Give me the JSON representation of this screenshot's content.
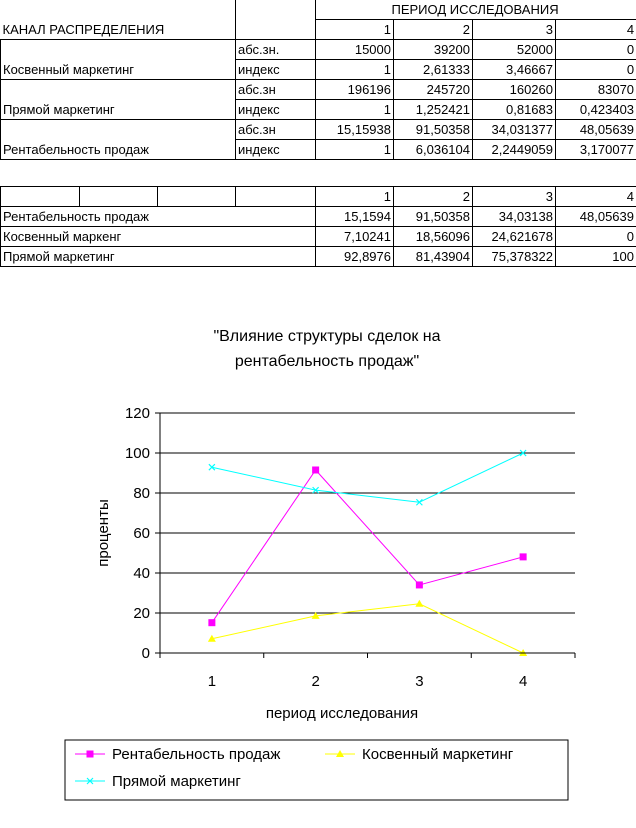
{
  "table1": {
    "channel_header": "КАНАЛ РАСПРЕДЕЛЕНИЯ",
    "period_header": "ПЕРИОД ИССЛЕДОВАНИЯ",
    "periods": [
      "1",
      "2",
      "3",
      "4"
    ],
    "groups": [
      {
        "name": "Косвенный маркетинг",
        "rows": [
          {
            "type": "абс.зн.",
            "values": [
              "15000",
              "39200",
              "52000",
              "0"
            ]
          },
          {
            "type": "индекс",
            "values": [
              "1",
              "2,61333",
              "3,46667",
              "0"
            ]
          }
        ]
      },
      {
        "name": "Прямой маркетинг",
        "rows": [
          {
            "type": "абс.зн",
            "values": [
              "196196",
              "245720",
              "160260",
              "83070"
            ]
          },
          {
            "type": "индекс",
            "values": [
              "1",
              "1,252421",
              "0,81683",
              "0,423403"
            ]
          }
        ]
      },
      {
        "name": "Рентабельность продаж",
        "rows": [
          {
            "type": "абс.зн",
            "values": [
              "15,15938",
              "91,50358",
              "34,031377",
              "48,05639"
            ]
          },
          {
            "type": "индекс",
            "values": [
              "1",
              "6,036104",
              "2,2449059",
              "3,170077"
            ]
          }
        ]
      }
    ]
  },
  "table2": {
    "periods": [
      "1",
      "2",
      "3",
      "4"
    ],
    "rows": [
      {
        "name": "Рентабельность продаж",
        "values": [
          "15,1594",
          "91,50358",
          "34,03138",
          "48,05639"
        ]
      },
      {
        "name": "Косвенный маркенг",
        "values": [
          "7,10241",
          "18,56096",
          "24,621678",
          "0"
        ]
      },
      {
        "name": "Прямой маркетинг",
        "values": [
          "92,8976",
          "81,43904",
          "75,378322",
          "100"
        ]
      }
    ]
  },
  "chart_data": {
    "type": "line",
    "title_lines": [
      "\"Влияние структуры сделок на",
      "рентабельность продаж\""
    ],
    "xlabel": "период исследования",
    "ylabel": "проценты",
    "categories": [
      "1",
      "2",
      "3",
      "4"
    ],
    "ylim": [
      0,
      120
    ],
    "yticks": [
      "0",
      "20",
      "40",
      "60",
      "80",
      "100",
      "120"
    ],
    "grid": true,
    "legend_position": "bottom",
    "series": [
      {
        "name": "Рентабельность продаж",
        "values": [
          15.1594,
          91.50358,
          34.03138,
          48.05639
        ],
        "color": "#ff00ff",
        "marker": "square"
      },
      {
        "name": "Косвенный маркетинг",
        "values": [
          7.10241,
          18.56096,
          24.621678,
          0
        ],
        "color": "#ffff00",
        "marker": "triangle"
      },
      {
        "name": "Прямой маркетинг",
        "values": [
          92.8976,
          81.43904,
          75.378322,
          100
        ],
        "color": "#00ffff",
        "marker": "x"
      }
    ]
  }
}
